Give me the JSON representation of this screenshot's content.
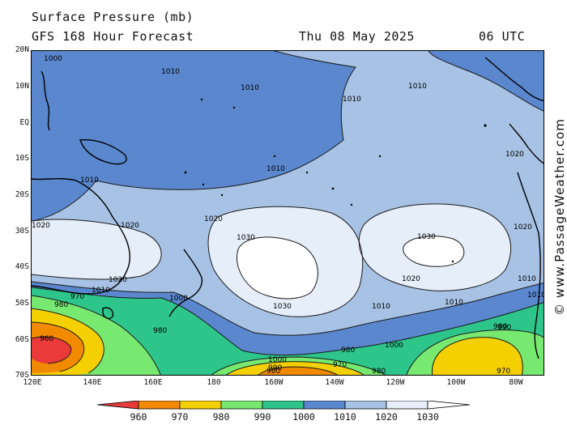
{
  "header": {
    "title": "Surface Pressure (mb)",
    "forecast": "GFS 168 Hour Forecast",
    "date": "Thu 08 May 2025",
    "time": "06 UTC"
  },
  "watermark": "© www.PassageWeather.com",
  "axes": {
    "lat_ticks": [
      "20N",
      "10N",
      "EQ",
      "10S",
      "20S",
      "30S",
      "40S",
      "50S",
      "60S",
      "70S"
    ],
    "lon_ticks": [
      "120E",
      "140E",
      "160E",
      "180",
      "160W",
      "140W",
      "120W",
      "100W",
      "80W"
    ]
  },
  "legend": {
    "levels": [
      "960",
      "970",
      "980",
      "990",
      "1000",
      "1010",
      "1020",
      "1030"
    ],
    "colors": [
      "#ea3a3a",
      "#f28a00",
      "#f5d000",
      "#77e870",
      "#2ec58a",
      "#5a87cd",
      "#a7c2e4",
      "#e6eef9"
    ]
  },
  "map": {
    "colors": {
      "p960": "#ea3a3a",
      "p970": "#f28a00",
      "p980": "#f5d000",
      "p990": "#77e870",
      "p1000": "#2ec58a",
      "p1010": "#5a87cd",
      "p1020": "#a7c2e4",
      "p1030": "#e6eef9",
      "p1040": "#ffffff"
    },
    "contour_labels": [
      "1000",
      "1010",
      "1010",
      "1010",
      "1010",
      "1010",
      "1020",
      "1020",
      "1020",
      "1030",
      "1030",
      "1030",
      "1020",
      "1020",
      "1020",
      "1010",
      "1010",
      "1000",
      "980",
      "980",
      "970",
      "960",
      "1000",
      "990",
      "970",
      "960",
      "980",
      "980",
      "1000",
      "990",
      "1010",
      "1020",
      "980",
      "970",
      "1010",
      "1010",
      "1010"
    ]
  }
}
